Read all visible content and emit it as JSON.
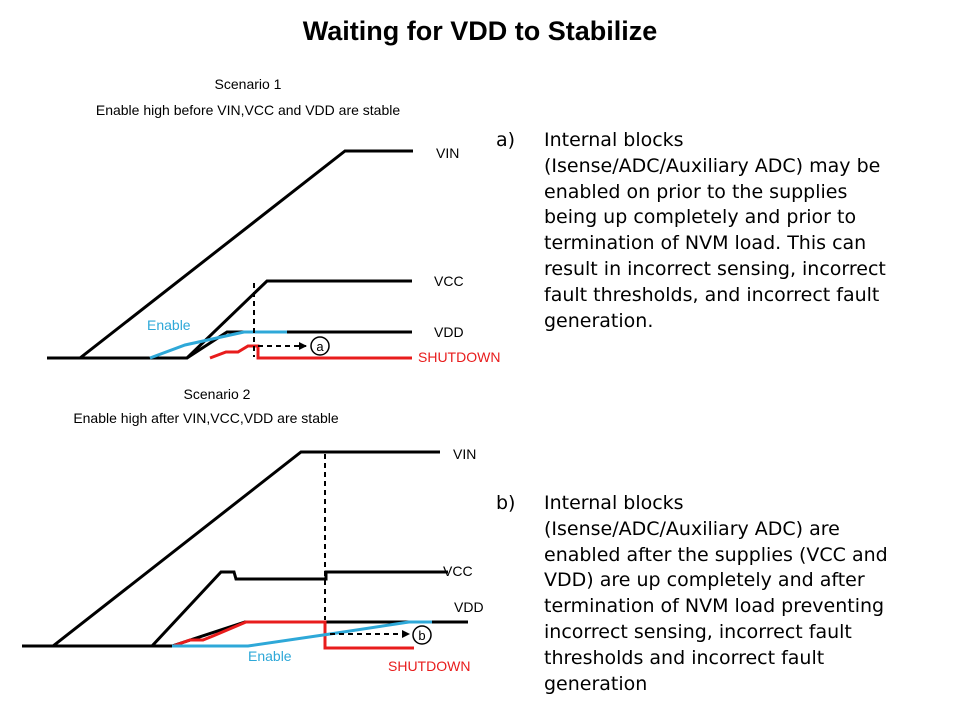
{
  "title": "Waiting for VDD to Stabilize",
  "colors": {
    "enable": "#2ea8d8",
    "shutdown": "#e81c1c",
    "trace": "#000000"
  },
  "scenario1": {
    "heading": "Scenario 1",
    "subheading": "Enable high before VIN,VCC and VDD are stable",
    "labels": {
      "vin": "VIN",
      "vcc": "VCC",
      "vdd": "VDD",
      "enable": "Enable",
      "shutdown": "SHUTDOWN",
      "marker": "a"
    }
  },
  "scenario2": {
    "heading": "Scenario 2",
    "subheading": "Enable high after VIN,VCC,VDD are stable",
    "labels": {
      "vin": "VIN",
      "vcc": "VCC",
      "vdd": "VDD",
      "enable": "Enable",
      "shutdown": "SHUTDOWN",
      "marker": "b"
    }
  },
  "notes": [
    {
      "marker": "a)",
      "text": "Internal blocks\n(Isense/ADC/Auxiliary ADC) may be\nenabled on prior to the supplies\nbeing up completely and prior to\ntermination of NVM load. This can\nresult in incorrect sensing, incorrect\nfault thresholds, and incorrect fault\ngeneration."
    },
    {
      "marker": "b)",
      "text": "Internal blocks\n(Isense/ADC/Auxiliary ADC) are\nenabled after the supplies (VCC and\nVDD) are up completely and after\ntermination of NVM load preventing\nincorrect sensing, incorrect fault\nthresholds and incorrect fault\ngeneration"
    }
  ]
}
